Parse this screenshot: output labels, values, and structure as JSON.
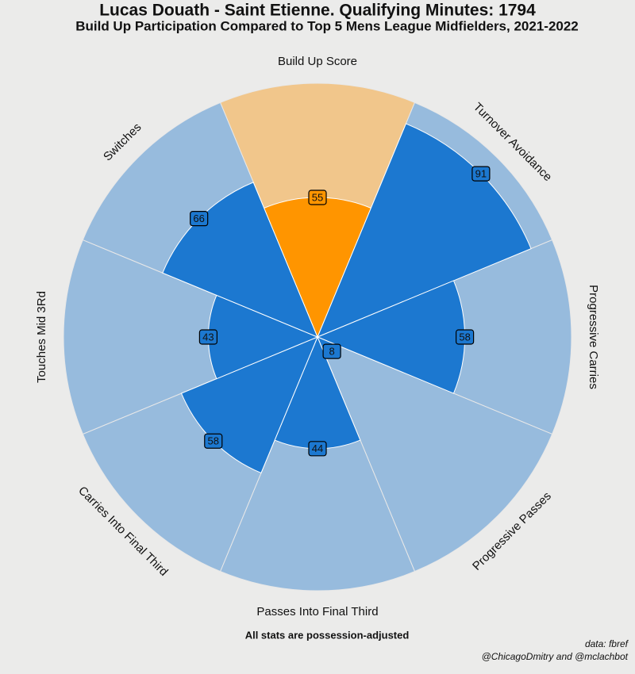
{
  "chart_data": {
    "type": "pizza",
    "title": "Lucas Douath - Saint Etienne. Qualifying Minutes: 1794",
    "subtitle": "Build Up Participation Compared to Top 5 Mens League Midfielders, 2021-2022",
    "categories": [
      "Build Up Score",
      "Turnover Avoidance",
      "Progressive Carries",
      "Progressive Passes",
      "Passes Into Final Third",
      "Carries Into Final Third",
      "Touches Mid 3Rd",
      "Switches"
    ],
    "values": [
      55,
      91,
      58,
      8,
      44,
      58,
      43,
      66
    ],
    "colors": [
      "#ff9500",
      "#1c78d0",
      "#1c78d0",
      "#1c78d0",
      "#1c78d0",
      "#1c78d0",
      "#1c78d0",
      "#1c78d0"
    ],
    "background_colors": [
      "#f1c68b",
      "#97bbdd",
      "#97bbdd",
      "#97bbdd",
      "#97bbdd",
      "#97bbdd",
      "#97bbdd",
      "#97bbdd"
    ],
    "ylim": [
      0,
      100
    ],
    "annotations": [
      "All stats are possession-adjusted",
      "data: fbref",
      "@ChicagoDmitry and @mclachbot"
    ]
  }
}
